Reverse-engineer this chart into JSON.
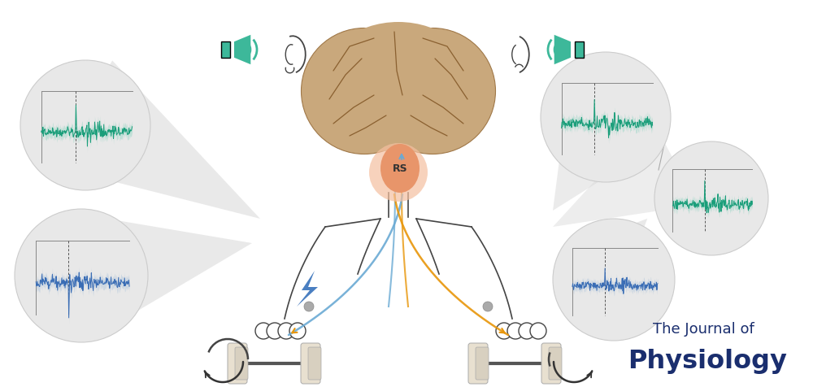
{
  "bg_color": "#ffffff",
  "title_line1": "The Journal of",
  "title_line2": "Physiology",
  "title_color": "#1a2e6e",
  "brain_color": "#c9a87c",
  "brain_stem_color": "#e8956a",
  "brain_stem_halo": "#f5c0a0",
  "rs_label": "RS",
  "circle_bg": "#e8e8e8",
  "circle_edge": "#cccccc",
  "green_color": "#1a9e7a",
  "green_shade": "#7acfb8",
  "blue_color": "#3a6db5",
  "blue_shade": "#9ab8d8",
  "orange_color": "#e8960a",
  "neural_blue": "#6aaad4",
  "neural_orange": "#e8960a",
  "bolt_color": "#4a7fc1",
  "speaker_color": "#3db89a",
  "body_color": "#444444",
  "ray_color": "#d8d8d8"
}
